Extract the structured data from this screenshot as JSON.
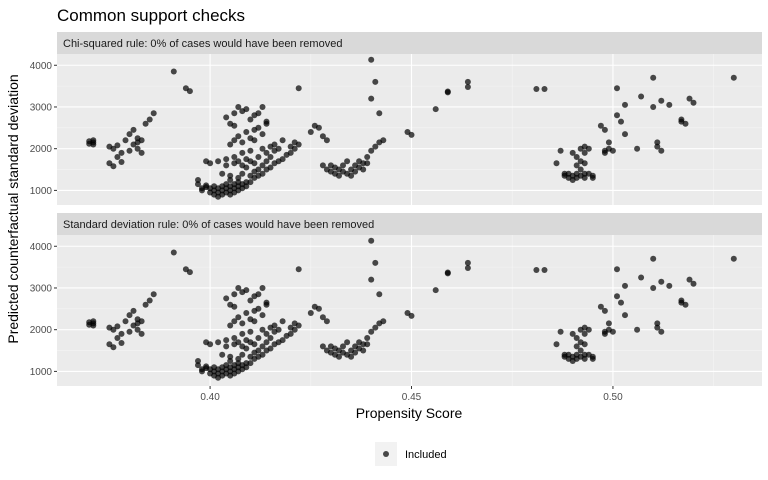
{
  "title": "Common support checks",
  "colors": {
    "panel_bg": "#ebebeb",
    "strip_bg": "#d9d9d9",
    "grid_major": "#ffffff",
    "point": "#000000"
  },
  "chart_data": {
    "type": "scatter",
    "xlabel": "Propensity Score",
    "ylabel": "Predicted counterfactual standard deviation",
    "xlim": [
      0.362,
      0.537
    ],
    "ylim": [
      650,
      4270
    ],
    "xticks": [
      0.4,
      0.45,
      0.5
    ],
    "xtick_labels": [
      "0.40",
      "0.45",
      "0.50"
    ],
    "yticks": [
      1000,
      2000,
      3000,
      4000
    ],
    "ytick_labels": [
      "1000",
      "2000",
      "3000",
      "4000"
    ],
    "grid": true,
    "point_alpha": 0.7,
    "legend": {
      "position": "bottom",
      "entries": [
        "Included"
      ]
    },
    "panels": [
      {
        "strip": "Chi-squared rule: 0% of cases would have been removed"
      },
      {
        "strip": "Standard deviation rule: 0% of cases would have been removed"
      }
    ],
    "series": [
      {
        "name": "Included",
        "points": [
          [
            0.37,
            2180
          ],
          [
            0.37,
            2120
          ],
          [
            0.371,
            2150
          ],
          [
            0.371,
            2100
          ],
          [
            0.371,
            2200
          ],
          [
            0.375,
            2050
          ],
          [
            0.376,
            2000
          ],
          [
            0.375,
            1650
          ],
          [
            0.376,
            1580
          ],
          [
            0.377,
            1800
          ],
          [
            0.377,
            2080
          ],
          [
            0.378,
            1900
          ],
          [
            0.378,
            1680
          ],
          [
            0.379,
            2200
          ],
          [
            0.38,
            2350
          ],
          [
            0.38,
            1950
          ],
          [
            0.381,
            2100
          ],
          [
            0.381,
            2450
          ],
          [
            0.382,
            2250
          ],
          [
            0.382,
            2150
          ],
          [
            0.382,
            2000
          ],
          [
            0.383,
            1900
          ],
          [
            0.383,
            2200
          ],
          [
            0.384,
            2600
          ],
          [
            0.385,
            2700
          ],
          [
            0.386,
            2850
          ],
          [
            0.391,
            3850
          ],
          [
            0.394,
            3450
          ],
          [
            0.395,
            3380
          ],
          [
            0.397,
            1150
          ],
          [
            0.397,
            1250
          ],
          [
            0.398,
            1050
          ],
          [
            0.398,
            1000
          ],
          [
            0.399,
            1080
          ],
          [
            0.399,
            1120
          ],
          [
            0.399,
            1700
          ],
          [
            0.4,
            1650
          ],
          [
            0.4,
            1050
          ],
          [
            0.4,
            950
          ],
          [
            0.401,
            900
          ],
          [
            0.401,
            1000
          ],
          [
            0.401,
            1100
          ],
          [
            0.402,
            850
          ],
          [
            0.402,
            950
          ],
          [
            0.402,
            1050
          ],
          [
            0.402,
            1700
          ],
          [
            0.403,
            1000
          ],
          [
            0.403,
            1100
          ],
          [
            0.403,
            900
          ],
          [
            0.403,
            1400
          ],
          [
            0.404,
            1050
          ],
          [
            0.404,
            1150
          ],
          [
            0.404,
            950
          ],
          [
            0.404,
            1600
          ],
          [
            0.404,
            1750
          ],
          [
            0.405,
            1000
          ],
          [
            0.405,
            1100
          ],
          [
            0.405,
            1250
          ],
          [
            0.405,
            1350
          ],
          [
            0.405,
            900
          ],
          [
            0.406,
            1050
          ],
          [
            0.406,
            1150
          ],
          [
            0.406,
            1650
          ],
          [
            0.406,
            1800
          ],
          [
            0.406,
            950
          ],
          [
            0.407,
            1000
          ],
          [
            0.407,
            1200
          ],
          [
            0.407,
            1300
          ],
          [
            0.407,
            1700
          ],
          [
            0.407,
            1100
          ],
          [
            0.408,
            1050
          ],
          [
            0.408,
            1150
          ],
          [
            0.408,
            1400
          ],
          [
            0.408,
            1600
          ],
          [
            0.408,
            1900
          ],
          [
            0.409,
            1100
          ],
          [
            0.409,
            1200
          ],
          [
            0.409,
            1550
          ],
          [
            0.409,
            1750
          ],
          [
            0.41,
            1200
          ],
          [
            0.41,
            1350
          ],
          [
            0.41,
            1700
          ],
          [
            0.41,
            1950
          ],
          [
            0.411,
            1300
          ],
          [
            0.411,
            1450
          ],
          [
            0.411,
            1650
          ],
          [
            0.411,
            2200
          ],
          [
            0.412,
            1350
          ],
          [
            0.412,
            1500
          ],
          [
            0.412,
            1800
          ],
          [
            0.413,
            1400
          ],
          [
            0.413,
            1600
          ],
          [
            0.413,
            2000
          ],
          [
            0.414,
            1500
          ],
          [
            0.414,
            1700
          ],
          [
            0.414,
            1900
          ],
          [
            0.415,
            1550
          ],
          [
            0.415,
            1800
          ],
          [
            0.415,
            2050
          ],
          [
            0.416,
            1650
          ],
          [
            0.416,
            1950
          ],
          [
            0.416,
            2100
          ],
          [
            0.417,
            1700
          ],
          [
            0.417,
            2000
          ],
          [
            0.418,
            1750
          ],
          [
            0.418,
            2200
          ],
          [
            0.419,
            1850
          ],
          [
            0.42,
            1900
          ],
          [
            0.42,
            2050
          ],
          [
            0.421,
            2000
          ],
          [
            0.421,
            2150
          ],
          [
            0.422,
            2100
          ],
          [
            0.404,
            2750
          ],
          [
            0.405,
            2600
          ],
          [
            0.406,
            2550
          ],
          [
            0.406,
            2850
          ],
          [
            0.407,
            3000
          ],
          [
            0.408,
            2900
          ],
          [
            0.409,
            2950
          ],
          [
            0.41,
            2700
          ],
          [
            0.411,
            2800
          ],
          [
            0.412,
            2850
          ],
          [
            0.413,
            3000
          ],
          [
            0.414,
            2650
          ],
          [
            0.405,
            2100
          ],
          [
            0.406,
            2200
          ],
          [
            0.407,
            2300
          ],
          [
            0.408,
            2150
          ],
          [
            0.409,
            2400
          ],
          [
            0.41,
            2250
          ],
          [
            0.411,
            2450
          ],
          [
            0.412,
            2500
          ],
          [
            0.413,
            2350
          ],
          [
            0.414,
            2600
          ],
          [
            0.422,
            3450
          ],
          [
            0.425,
            2400
          ],
          [
            0.426,
            2550
          ],
          [
            0.427,
            2500
          ],
          [
            0.428,
            2300
          ],
          [
            0.429,
            2200
          ],
          [
            0.428,
            1600
          ],
          [
            0.429,
            1500
          ],
          [
            0.43,
            1450
          ],
          [
            0.43,
            1600
          ],
          [
            0.431,
            1400
          ],
          [
            0.431,
            1550
          ],
          [
            0.432,
            1350
          ],
          [
            0.432,
            1500
          ],
          [
            0.433,
            1600
          ],
          [
            0.433,
            1450
          ],
          [
            0.434,
            1400
          ],
          [
            0.434,
            1700
          ],
          [
            0.435,
            1500
          ],
          [
            0.435,
            1350
          ],
          [
            0.436,
            1600
          ],
          [
            0.436,
            1450
          ],
          [
            0.437,
            1550
          ],
          [
            0.437,
            1700
          ],
          [
            0.438,
            1500
          ],
          [
            0.438,
            1650
          ],
          [
            0.439,
            1800
          ],
          [
            0.439,
            1650
          ],
          [
            0.44,
            1950
          ],
          [
            0.441,
            2050
          ],
          [
            0.442,
            2150
          ],
          [
            0.443,
            2200
          ],
          [
            0.44,
            3200
          ],
          [
            0.44,
            4130
          ],
          [
            0.441,
            3600
          ],
          [
            0.442,
            2850
          ],
          [
            0.449,
            2400
          ],
          [
            0.45,
            2330
          ],
          [
            0.456,
            2950
          ],
          [
            0.459,
            3350
          ],
          [
            0.459,
            3370
          ],
          [
            0.464,
            3480
          ],
          [
            0.464,
            3600
          ],
          [
            0.481,
            3430
          ],
          [
            0.483,
            3430
          ],
          [
            0.486,
            1650
          ],
          [
            0.487,
            1950
          ],
          [
            0.488,
            1400
          ],
          [
            0.488,
            1350
          ],
          [
            0.489,
            1300
          ],
          [
            0.489,
            1400
          ],
          [
            0.49,
            1350
          ],
          [
            0.49,
            1250
          ],
          [
            0.49,
            1900
          ],
          [
            0.491,
            1300
          ],
          [
            0.491,
            1400
          ],
          [
            0.491,
            1600
          ],
          [
            0.491,
            1800
          ],
          [
            0.492,
            1350
          ],
          [
            0.492,
            1500
          ],
          [
            0.492,
            1700
          ],
          [
            0.492,
            2000
          ],
          [
            0.493,
            1300
          ],
          [
            0.493,
            1400
          ],
          [
            0.493,
            1650
          ],
          [
            0.493,
            1900
          ],
          [
            0.493,
            2050
          ],
          [
            0.494,
            1400
          ],
          [
            0.494,
            2000
          ],
          [
            0.495,
            1300
          ],
          [
            0.495,
            1350
          ],
          [
            0.497,
            2550
          ],
          [
            0.498,
            2450
          ],
          [
            0.498,
            1950
          ],
          [
            0.498,
            1900
          ],
          [
            0.499,
            2000
          ],
          [
            0.499,
            2150
          ],
          [
            0.5,
            1950
          ],
          [
            0.501,
            2800
          ],
          [
            0.501,
            3450
          ],
          [
            0.502,
            2650
          ],
          [
            0.503,
            2350
          ],
          [
            0.503,
            3050
          ],
          [
            0.506,
            2000
          ],
          [
            0.507,
            3250
          ],
          [
            0.51,
            3000
          ],
          [
            0.51,
            3700
          ],
          [
            0.511,
            2050
          ],
          [
            0.511,
            2150
          ],
          [
            0.512,
            1950
          ],
          [
            0.512,
            3150
          ],
          [
            0.514,
            3050
          ],
          [
            0.517,
            2650
          ],
          [
            0.517,
            2700
          ],
          [
            0.518,
            2600
          ],
          [
            0.519,
            3200
          ],
          [
            0.52,
            3100
          ],
          [
            0.53,
            3700
          ]
        ]
      }
    ]
  }
}
